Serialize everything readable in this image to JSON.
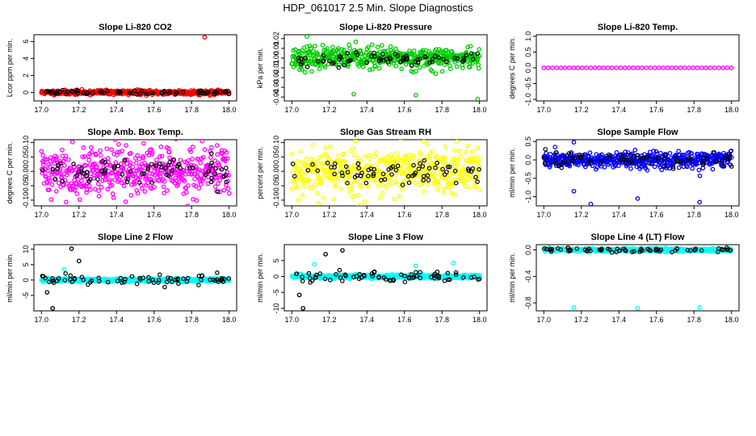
{
  "figure": {
    "title": "HDP_061017  2.5 Min. Slope Diagnostics",
    "marker_outline": "#000000"
  },
  "chart_data": [
    {
      "type": "scatter",
      "id": "p1",
      "title": "Slope Li-820 CO2",
      "ylabel": "Lcor ppm per min.",
      "xlabel": "",
      "xlim": [
        16.96,
        18.04
      ],
      "ylim": [
        -1.0,
        6.8
      ],
      "xticks": [
        "17.0",
        "17.2",
        "17.4",
        "17.6",
        "17.8",
        "18.0"
      ],
      "yticks": [
        "0",
        "2",
        "4",
        "6"
      ],
      "color": "#ff0000",
      "density": 480,
      "spread": 0.22,
      "noise_seed": 11,
      "black_spread": 0.22,
      "outliers": [
        [
          17.87,
          6.5
        ]
      ]
    },
    {
      "type": "scatter",
      "id": "p2",
      "title": "Slope Li-820 Pressure",
      "ylabel": "kPa per min.",
      "xlabel": "",
      "xlim": [
        16.96,
        18.04
      ],
      "ylim": [
        -0.044,
        0.024
      ],
      "xticks": [
        "17.0",
        "17.2",
        "17.4",
        "17.6",
        "17.8",
        "18.0"
      ],
      "yticks": [
        "-0.04",
        "-0.03",
        "-0.02",
        "-0.01",
        "0.00",
        "0.01",
        "0.02"
      ],
      "color": "#00cc00",
      "density": 480,
      "spread": 0.009,
      "noise_seed": 23,
      "black_spread": 0.006,
      "outliers": [
        [
          17.08,
          0.022
        ],
        [
          17.33,
          -0.037
        ],
        [
          17.66,
          -0.038
        ],
        [
          17.99,
          -0.042
        ]
      ]
    },
    {
      "type": "scatter",
      "id": "p3",
      "title": "Slope Li-820 Temp.",
      "ylabel": "degrees C per min.",
      "xlabel": "",
      "xlim": [
        16.96,
        18.04
      ],
      "ylim": [
        -1.05,
        1.05
      ],
      "xticks": [
        "17.0",
        "17.2",
        "17.4",
        "17.6",
        "17.8",
        "18.0"
      ],
      "yticks": [
        "-1.0",
        "-0.5",
        "0.0",
        "0.5",
        "1.0"
      ],
      "color": "#ff00ff",
      "density": 45,
      "spread": 0.0,
      "noise_seed": 37,
      "black_spread": 0.0,
      "outliers": []
    },
    {
      "type": "scatter",
      "id": "p4",
      "title": "Slope Amb. Box Temp.",
      "ylabel": "degrees C per min.",
      "xlabel": "",
      "xlim": [
        16.96,
        18.04
      ],
      "ylim": [
        -0.12,
        0.11
      ],
      "xticks": [
        "17.0",
        "17.2",
        "17.4",
        "17.6",
        "17.8",
        "18.0"
      ],
      "yticks": [
        "-0.10",
        "-0.05",
        "0.00",
        "0.05",
        "0.10"
      ],
      "color": "#ff00ff",
      "density": 480,
      "spread": 0.07,
      "noise_seed": 41,
      "black_spread": 0.04,
      "outliers": []
    },
    {
      "type": "scatter",
      "id": "p5",
      "title": "Slope Gas Stream RH",
      "ylabel": "percent per min.",
      "xlabel": "",
      "xlim": [
        16.96,
        18.04
      ],
      "ylim": [
        -0.12,
        0.11
      ],
      "xticks": [
        "17.0",
        "17.2",
        "17.4",
        "17.6",
        "17.8",
        "18.0"
      ],
      "yticks": [
        "-0.10",
        "-0.05",
        "0.00",
        "0.05",
        "0.10"
      ],
      "color": "#ffff00",
      "density": 480,
      "spread": 0.07,
      "noise_seed": 53,
      "black_spread": 0.04,
      "outliers": []
    },
    {
      "type": "scatter",
      "id": "p6",
      "title": "Slope Sample Flow",
      "ylabel": "ml/min per min.",
      "xlabel": "",
      "xlim": [
        16.96,
        18.04
      ],
      "ylim": [
        -1.25,
        0.55
      ],
      "xticks": [
        "17.0",
        "17.2",
        "17.4",
        "17.6",
        "17.8",
        "18.0"
      ],
      "yticks": [
        "-1.0",
        "-0.5",
        "0.0",
        "0.5"
      ],
      "color": "#0000ff",
      "density": 480,
      "spread": 0.18,
      "noise_seed": 61,
      "black_spread": 0.2,
      "outliers": [
        [
          17.16,
          0.48
        ],
        [
          17.16,
          -0.85
        ],
        [
          17.25,
          -1.2
        ],
        [
          17.5,
          -1.05
        ],
        [
          17.83,
          -1.15
        ],
        [
          17.06,
          0.35
        ]
      ]
    },
    {
      "type": "scatter",
      "id": "p7",
      "title": "Slope Line 2 Flow",
      "ylabel": "ml/min per min.",
      "xlabel": "",
      "xlim": [
        16.96,
        18.04
      ],
      "ylim": [
        -10.0,
        11.5
      ],
      "xticks": [
        "17.0",
        "17.2",
        "17.4",
        "17.6",
        "17.8",
        "18.0"
      ],
      "yticks": [
        "-5",
        "0",
        "5",
        "10"
      ],
      "color": "#00ffff",
      "density": 480,
      "spread": 0.5,
      "noise_seed": 71,
      "black_spread": 1.8,
      "outliers": [
        [
          17.16,
          10.2
        ],
        [
          17.2,
          6.2
        ],
        [
          17.06,
          -9.2
        ],
        [
          17.03,
          -4.0
        ],
        [
          17.12,
          3.5
        ]
      ]
    },
    {
      "type": "scatter",
      "id": "p8",
      "title": "Slope Line 3 Flow",
      "ylabel": "ml/min per min.",
      "xlabel": "",
      "xlim": [
        16.96,
        18.04
      ],
      "ylim": [
        -10.8,
        10.0
      ],
      "xticks": [
        "17.0",
        "17.2",
        "17.4",
        "17.6",
        "17.8",
        "18.0"
      ],
      "yticks": [
        "-10",
        "-5",
        "0",
        "5"
      ],
      "color": "#00ffff",
      "density": 480,
      "spread": 0.5,
      "noise_seed": 83,
      "black_spread": 1.8,
      "outliers": [
        [
          17.27,
          8.2
        ],
        [
          17.18,
          7.0
        ],
        [
          17.06,
          -10.0
        ],
        [
          17.04,
          -5.8
        ],
        [
          17.66,
          3.3
        ],
        [
          17.86,
          4.2
        ],
        [
          17.12,
          3.8
        ]
      ]
    },
    {
      "type": "scatter",
      "id": "p9",
      "title": "Slope Line 4 (LT) Flow",
      "ylabel": "ml/min per min.",
      "xlabel": "",
      "xlim": [
        16.96,
        18.04
      ],
      "ylim": [
        -0.92,
        0.08
      ],
      "xticks": [
        "17.0",
        "17.2",
        "17.4",
        "17.6",
        "17.8",
        "18.0"
      ],
      "yticks": [
        "-0.8",
        "-0.4",
        "0.0"
      ],
      "color": "#00ffff",
      "density": 480,
      "spread": 0.02,
      "noise_seed": 97,
      "black_spread": 0.03,
      "outliers": [
        [
          17.16,
          -0.87
        ],
        [
          17.5,
          -0.88
        ],
        [
          17.83,
          -0.87
        ]
      ]
    }
  ]
}
